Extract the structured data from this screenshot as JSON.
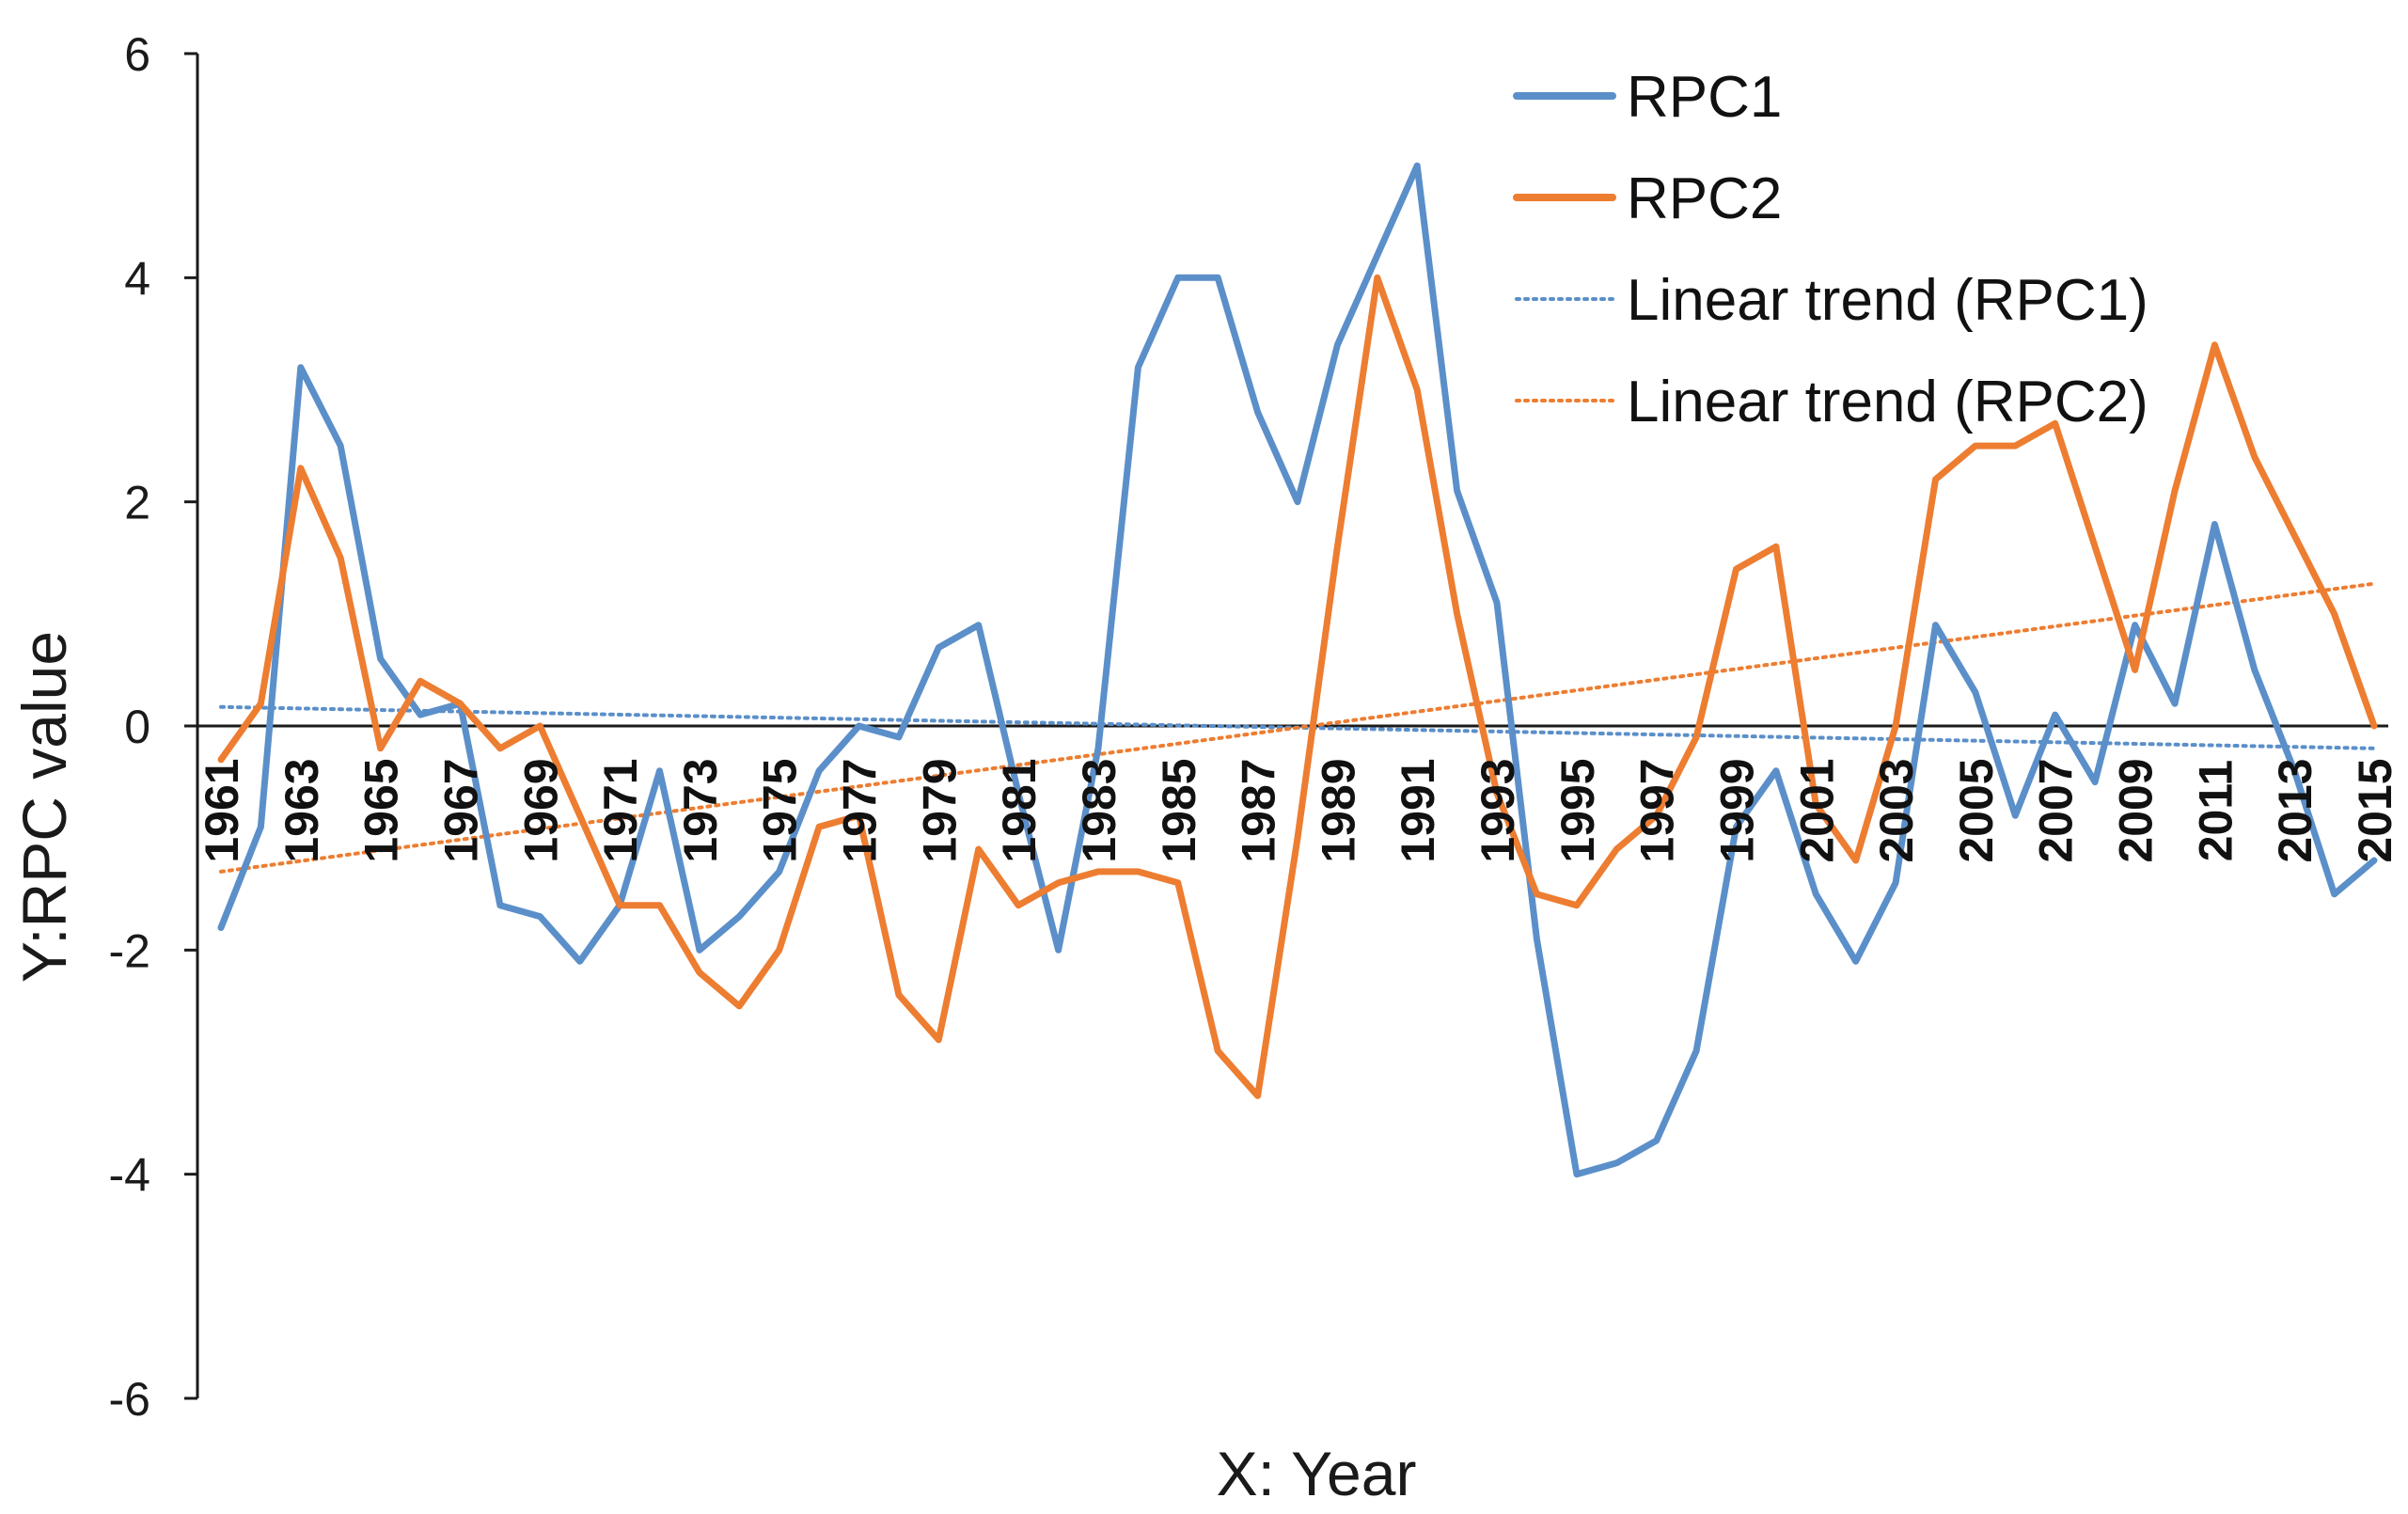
{
  "chart_data": {
    "type": "line",
    "title": "",
    "xlabel": "X: Year",
    "ylabel": "Y:RPC value",
    "xlim": [
      1961,
      2015
    ],
    "ylim": [
      -6,
      6
    ],
    "yticks": [
      6,
      4,
      2,
      0,
      -2,
      -4,
      -6
    ],
    "xticks": [
      1961,
      1963,
      1965,
      1967,
      1969,
      1971,
      1973,
      1975,
      1977,
      1979,
      1981,
      1983,
      1985,
      1987,
      1989,
      1991,
      1993,
      1995,
      1997,
      1999,
      2001,
      2003,
      2005,
      2007,
      2009,
      2011,
      2013,
      2015
    ],
    "grid": false,
    "legend_position": "top-right",
    "x": [
      1961,
      1962,
      1963,
      1964,
      1965,
      1966,
      1967,
      1968,
      1969,
      1970,
      1971,
      1972,
      1973,
      1974,
      1975,
      1976,
      1977,
      1978,
      1979,
      1980,
      1981,
      1982,
      1983,
      1984,
      1985,
      1986,
      1987,
      1988,
      1989,
      1990,
      1991,
      1992,
      1993,
      1994,
      1995,
      1996,
      1997,
      1998,
      1999,
      2000,
      2001,
      2002,
      2003,
      2004,
      2005,
      2006,
      2007,
      2008,
      2009,
      2010,
      2011,
      2012,
      2013,
      2014,
      2015
    ],
    "series": [
      {
        "name": "RPC1",
        "color": "#5B8FC9",
        "style": "solid",
        "values": [
          -1.8,
          -0.9,
          3.2,
          2.5,
          0.6,
          0.1,
          0.2,
          -1.6,
          -1.7,
          -2.1,
          -1.6,
          -0.4,
          -2.0,
          -1.7,
          -1.3,
          -0.4,
          0.0,
          -0.1,
          0.7,
          0.9,
          -0.6,
          -2.0,
          -0.2,
          3.2,
          4.0,
          4.0,
          2.8,
          2.0,
          3.4,
          4.2,
          5.0,
          2.1,
          1.1,
          -1.9,
          -4.0,
          -3.9,
          -3.7,
          -2.9,
          -0.9,
          -0.4,
          -1.5,
          -2.1,
          -1.4,
          0.9,
          0.3,
          -0.8,
          0.1,
          -0.5,
          0.9,
          0.2,
          1.8,
          0.5,
          -0.4,
          -1.5,
          -1.2
        ]
      },
      {
        "name": "RPC2",
        "color": "#ED7D31",
        "style": "solid",
        "values": [
          -0.3,
          0.2,
          2.3,
          1.5,
          -0.2,
          0.4,
          0.2,
          -0.2,
          0.0,
          -0.8,
          -1.6,
          -1.6,
          -2.2,
          -2.5,
          -2.0,
          -0.9,
          -0.8,
          -2.4,
          -2.8,
          -1.1,
          -1.6,
          -1.4,
          -1.3,
          -1.3,
          -1.4,
          -2.9,
          -3.3,
          -1.0,
          1.6,
          4.0,
          3.0,
          1.0,
          -0.6,
          -1.5,
          -1.6,
          -1.1,
          -0.8,
          -0.1,
          1.4,
          1.6,
          -0.7,
          -1.2,
          0.0,
          2.2,
          2.5,
          2.5,
          2.7,
          1.6,
          0.5,
          2.1,
          3.4,
          2.4,
          1.7,
          1.0,
          0.0
        ]
      }
    ],
    "trendlines": [
      {
        "name": "Linear trend (RPC1)",
        "color": "#5B8FC9",
        "style": "dotted",
        "start": [
          1961,
          0.17
        ],
        "end": [
          2015,
          -0.2
        ]
      },
      {
        "name": "Linear trend (RPC2)",
        "color": "#ED7D31",
        "style": "dotted",
        "start": [
          1961,
          -1.3
        ],
        "end": [
          2015,
          1.27
        ]
      }
    ]
  }
}
